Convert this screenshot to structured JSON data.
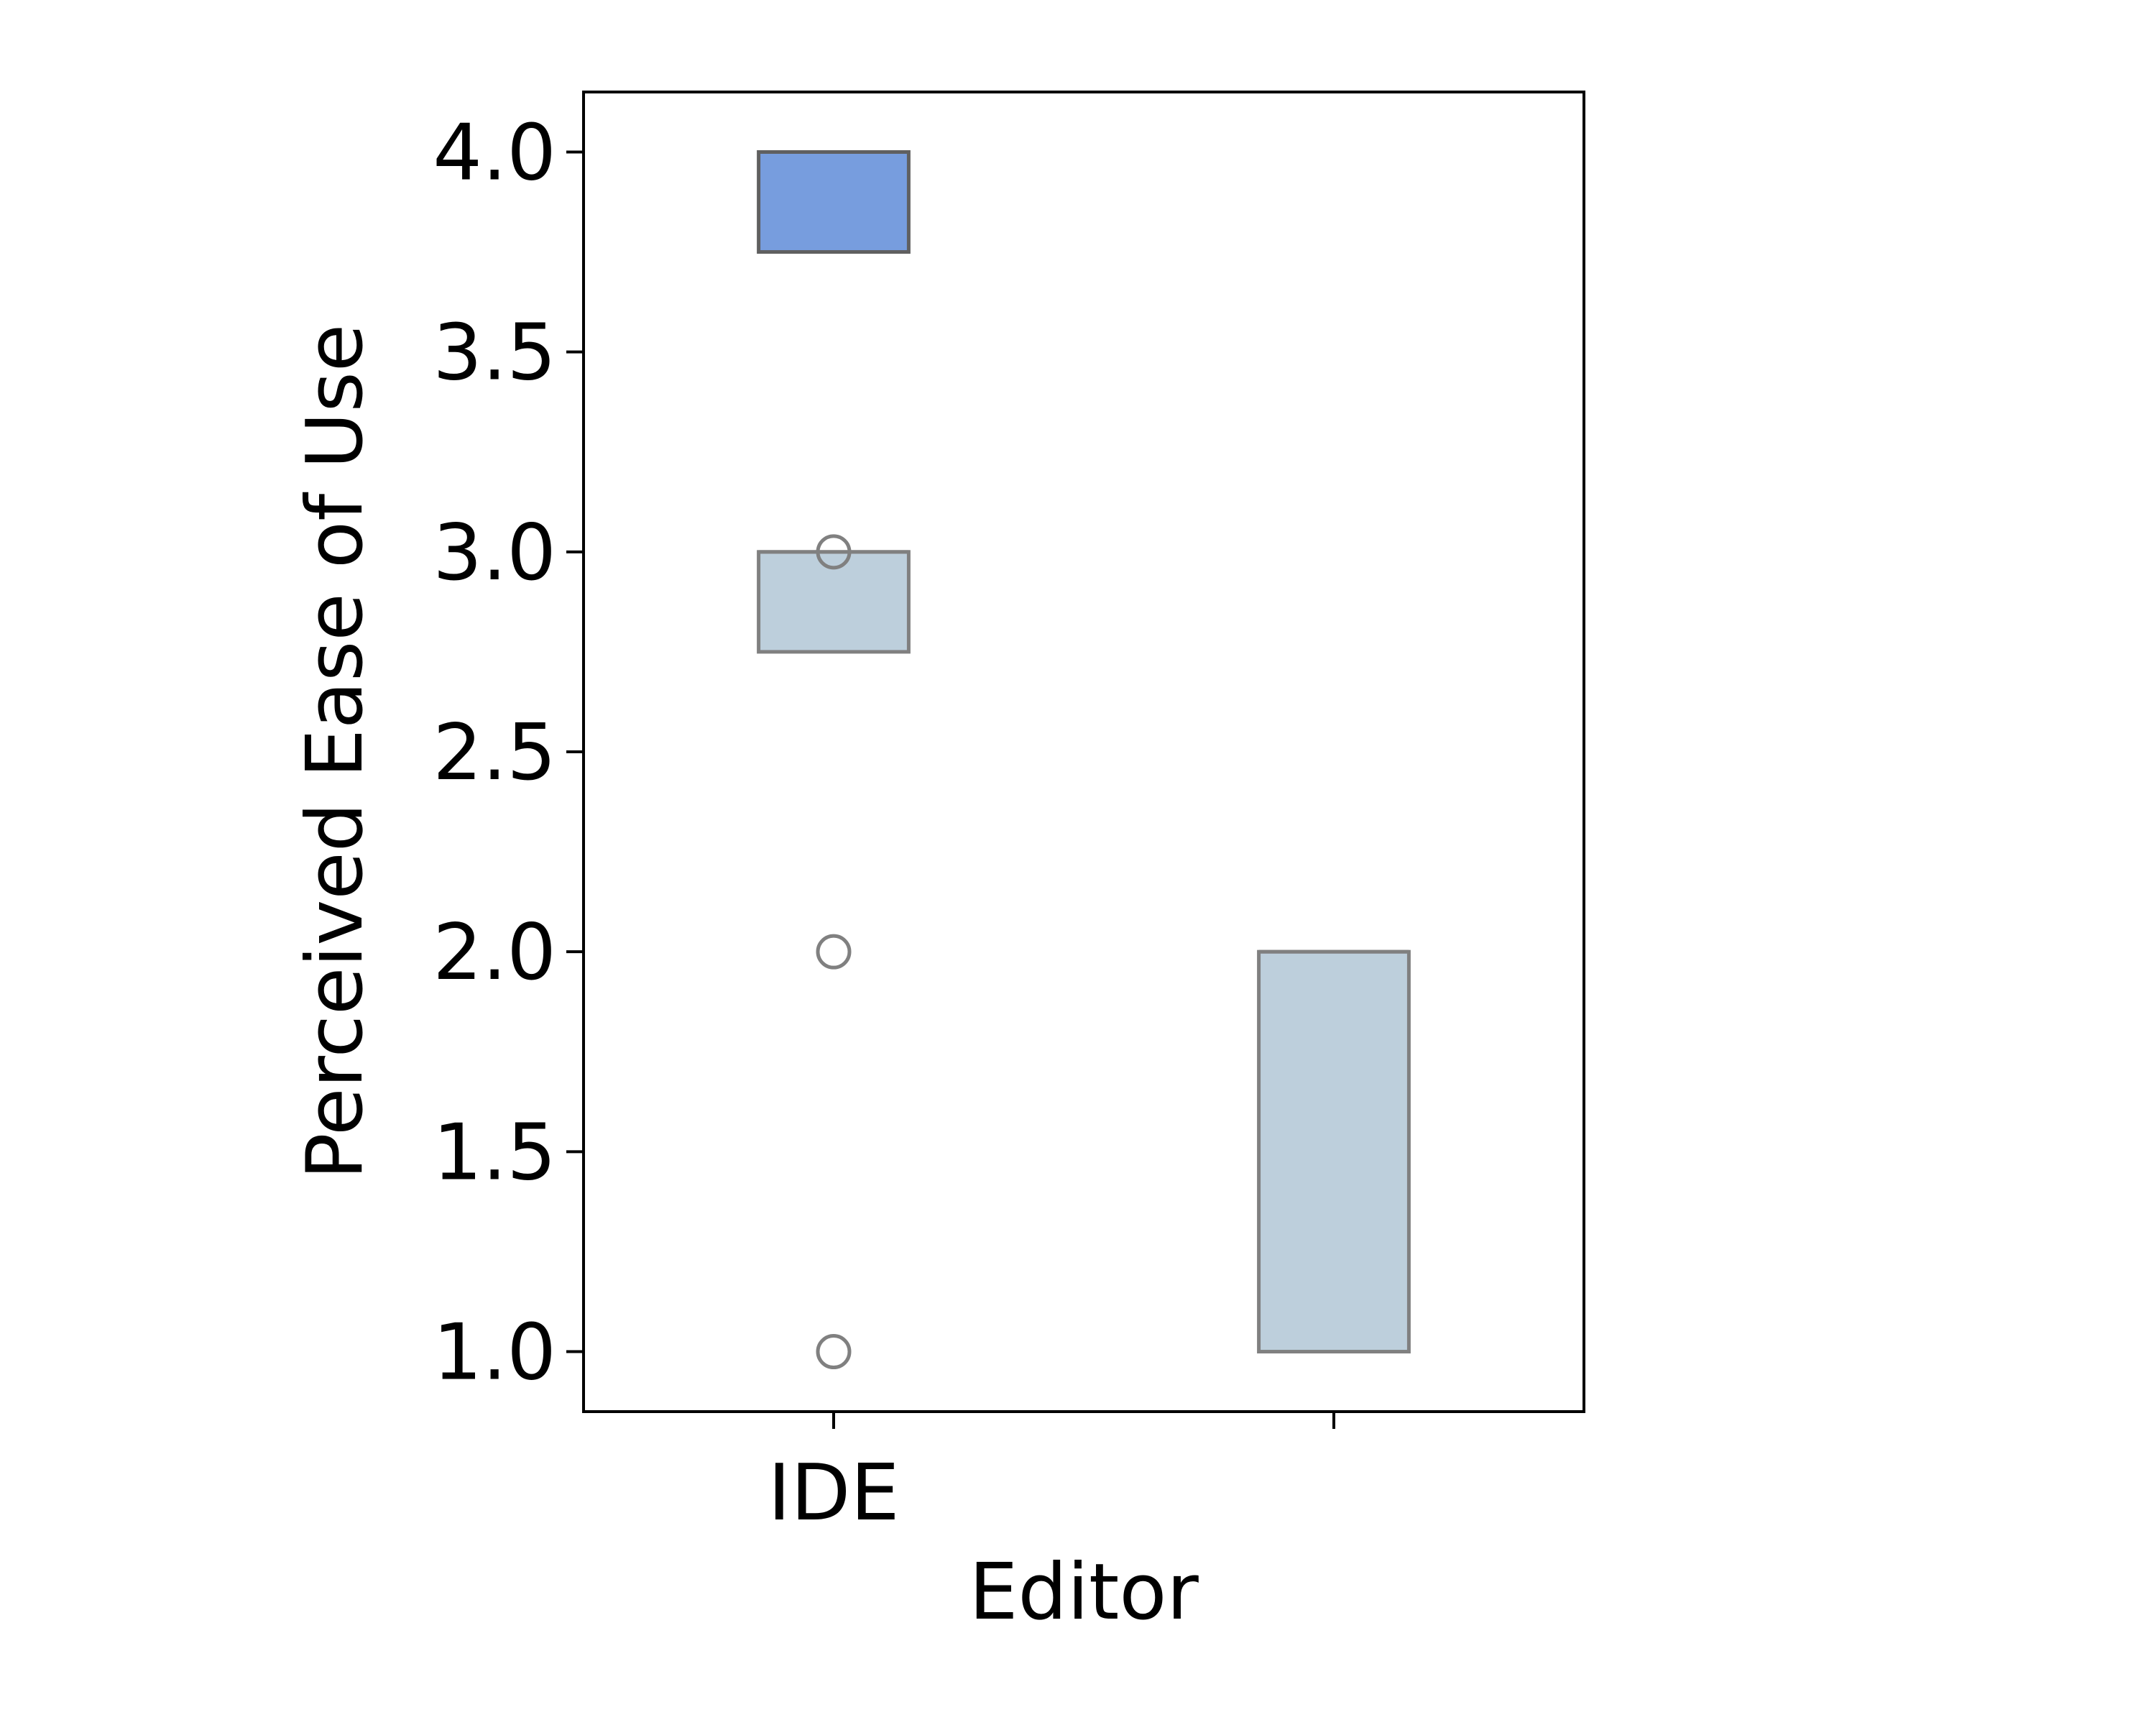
{
  "chart_data": {
    "type": "box",
    "xlabel": "Editor",
    "ylabel": "Perceived Ease of Use",
    "categories": [
      "IDE",
      ""
    ],
    "ylim": [
      0.85,
      4.15
    ],
    "yticks": [
      "1.0",
      "1.5",
      "2.0",
      "2.5",
      "3.0",
      "3.5",
      "4.0"
    ],
    "grid": false,
    "legend": "none",
    "boxes": [
      {
        "category_index": 0,
        "q1": 3.75,
        "q3": 4.0,
        "median": 4.0,
        "whisker_low": 3.75,
        "whisker_high": 4.0,
        "fill": "#779dde",
        "edge": "#606060",
        "outliers": []
      },
      {
        "category_index": 0,
        "q1": 2.75,
        "q3": 3.0,
        "median": 3.0,
        "whisker_low": 2.75,
        "whisker_high": 3.0,
        "fill": "#bdcfdc",
        "edge": "#808080",
        "outliers": [
          3.0,
          2.0,
          1.0
        ]
      },
      {
        "category_index": 1,
        "q1": 1.0,
        "q3": 2.0,
        "median": 2.0,
        "whisker_low": 1.0,
        "whisker_high": 2.0,
        "fill": "#bdcfdc",
        "edge": "#808080",
        "outliers": []
      }
    ]
  }
}
